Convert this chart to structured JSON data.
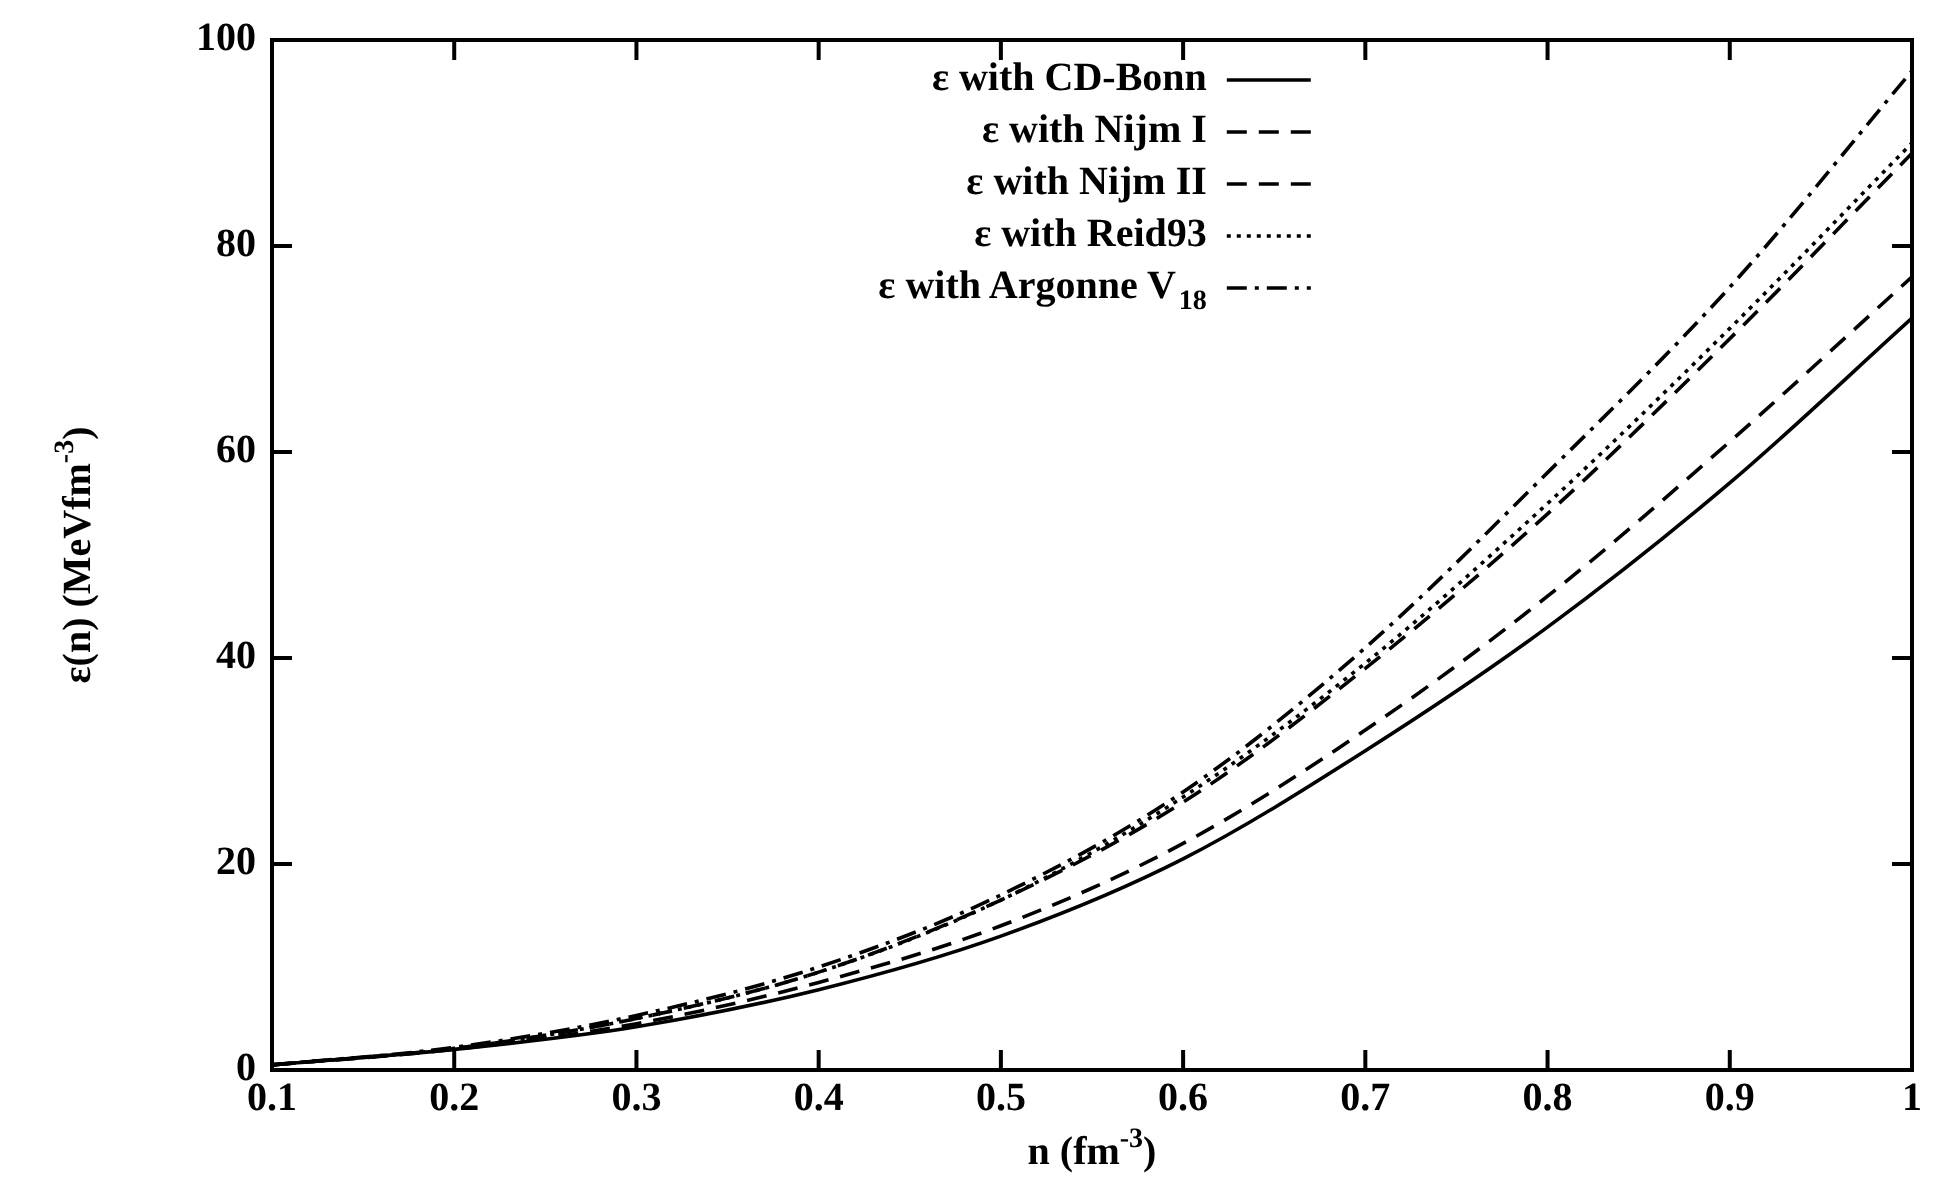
{
  "chart_data": {
    "type": "line",
    "xlabel": "n (fm$^{-3}$)",
    "ylabel": "ε(n) (MeVfm$^{-3}$)",
    "x": [
      0.1,
      0.2,
      0.3,
      0.4,
      0.5,
      0.6,
      0.7,
      0.8,
      0.9,
      1.0
    ],
    "series": [
      {
        "name": "ε with CD-Bonn",
        "color": "#000000",
        "line_style": "solid",
        "values": [
          0.5,
          2,
          4.2,
          7.8,
          13,
          20.5,
          31,
          43,
          57,
          73
        ]
      },
      {
        "name": "ε with Nijm I",
        "color": "#000000",
        "line_style": "dashed",
        "values": [
          0.5,
          2,
          4.5,
          8.5,
          14,
          22,
          33,
          46,
          61,
          77
        ]
      },
      {
        "name": "ε with Nijm II",
        "color": "#000000",
        "line_style": "dashed",
        "values": [
          0.5,
          2.1,
          5,
          9.5,
          16.5,
          26,
          39,
          54,
          71,
          89
        ]
      },
      {
        "name": "ε with Reid93",
        "color": "#000000",
        "line_style": "dotted",
        "values": [
          0.5,
          2.1,
          5,
          9.5,
          16.5,
          26.5,
          39.5,
          55,
          72,
          90
        ]
      },
      {
        "name": "ε with Argonne V$_{18}$",
        "color": "#000000",
        "line_style": "dashdot",
        "values": [
          0.5,
          2.2,
          5.3,
          10,
          17,
          27,
          41,
          58,
          76,
          97
        ]
      }
    ],
    "xlim": [
      0.1,
      1.0
    ],
    "xticks": [
      0.1,
      0.2,
      0.3,
      0.4,
      0.5,
      0.6,
      0.7,
      0.8,
      0.9,
      {
        "value": 1.0,
        "label": "1"
      }
    ],
    "ylim": [
      0,
      100
    ],
    "yticks": [
      0,
      20,
      40,
      60,
      80,
      100
    ],
    "grid": false,
    "legend": "top",
    "marker": "none"
  }
}
